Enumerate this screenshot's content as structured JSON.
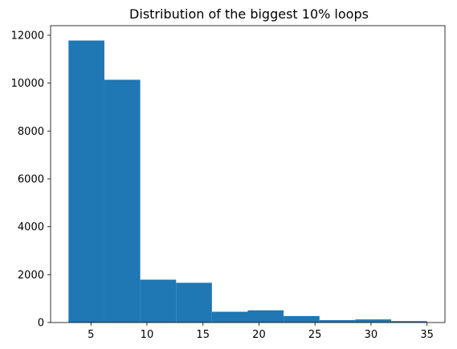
{
  "chart_data": {
    "type": "bar",
    "title": "Distribution of the biggest 10% loops",
    "xlabel": "",
    "ylabel": "",
    "bin_edges": [
      3.0,
      6.2,
      9.4,
      12.6,
      15.8,
      19.0,
      22.2,
      25.4,
      28.6,
      31.8,
      35.0
    ],
    "values": [
      11780,
      10140,
      1790,
      1660,
      450,
      510,
      270,
      100,
      130,
      60
    ],
    "xlim": [
      1.4,
      36.6
    ],
    "ylim": [
      0,
      12400
    ],
    "xticks": [
      5,
      10,
      15,
      20,
      25,
      30,
      35
    ],
    "xtick_labels": [
      "5",
      "10",
      "15",
      "20",
      "25",
      "30",
      "35"
    ],
    "yticks": [
      0,
      2000,
      4000,
      6000,
      8000,
      10000,
      12000
    ],
    "ytick_labels": [
      "0",
      "2000",
      "4000",
      "6000",
      "8000",
      "10000",
      "12000"
    ],
    "grid": false,
    "bar_color": "#1f77b4"
  }
}
